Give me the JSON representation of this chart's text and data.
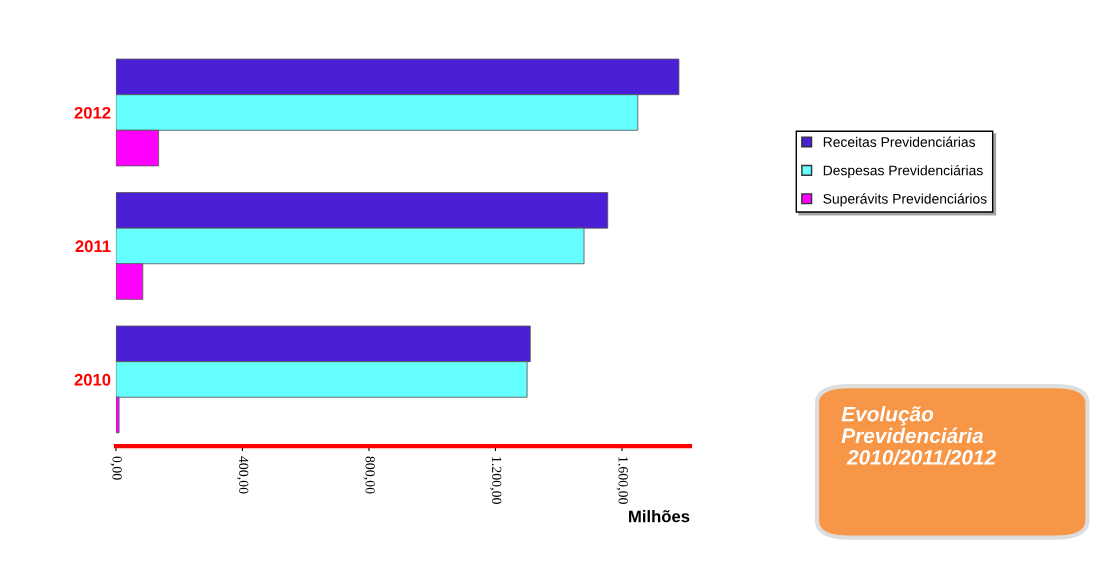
{
  "chart_data": {
    "type": "bar",
    "orientation": "horizontal",
    "categories": [
      "2012",
      "2011",
      "2010"
    ],
    "series": [
      {
        "name": "Receitas Previdenciárias",
        "color": "#4a1fd6",
        "values": [
          1780,
          1555,
          1310
        ]
      },
      {
        "name": "Despesas Previdenciárias",
        "color": "#66ffff",
        "values": [
          1650,
          1480,
          1300
        ]
      },
      {
        "name": "Superávits Previdenciários",
        "color": "#ff00ff",
        "values": [
          135,
          85,
          10
        ]
      }
    ],
    "xlim": [
      0,
      1815
    ],
    "xticks": [
      {
        "value": 0,
        "label": "0,00"
      },
      {
        "value": 400,
        "label": "400,00"
      },
      {
        "value": 800,
        "label": "800,00"
      },
      {
        "value": 1200,
        "label": "1.200,00"
      },
      {
        "value": 1600,
        "label": "1.600,00"
      }
    ],
    "xlabel": "Milhões",
    "legend": "right",
    "grid": false,
    "annotations": [
      "Evolução\nPrevidenciária\n 2010/2011/2012"
    ]
  }
}
